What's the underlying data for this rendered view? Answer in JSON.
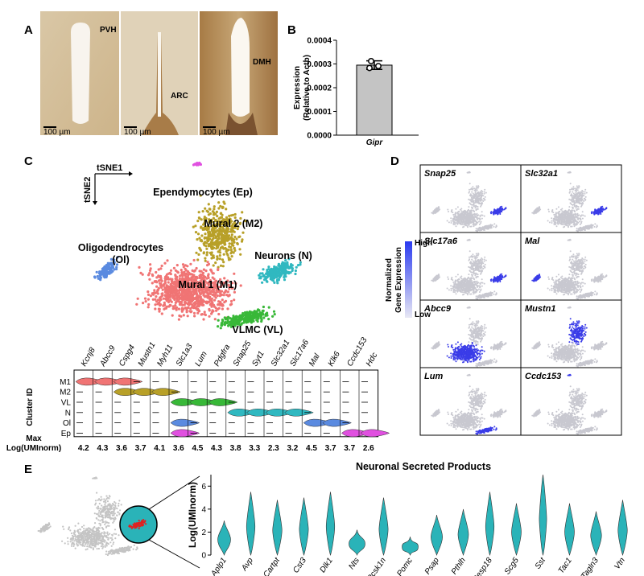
{
  "panel_labels": [
    "A",
    "B",
    "C",
    "D",
    "E"
  ],
  "panel_a": {
    "regions": [
      "PVH",
      "ARC",
      "DMH"
    ],
    "scale_bars": [
      "100 µm",
      "100 µm",
      "100 µm"
    ]
  },
  "chart_data": [
    {
      "type": "bar",
      "ylabel": "Expression",
      "ylabel2": "(Relative to Actb)",
      "categories": [
        "Gipr"
      ],
      "values": [
        0.000295
      ],
      "errors": [
        1.8e-05
      ],
      "points": [
        0.000312,
        0.000283,
        0.000291
      ],
      "color": "#c4c4c4",
      "ylim": [
        0,
        0.0004
      ],
      "yticks": [
        {
          "value": 0,
          "label": "0.0000"
        },
        {
          "value": 0.0001,
          "label": "0.0001"
        },
        {
          "value": 0.0002,
          "label": "0.0002"
        },
        {
          "value": 0.0003,
          "label": "0.0003"
        },
        {
          "value": 0.0004,
          "label": "0.0004"
        }
      ]
    },
    {
      "type": "violin",
      "title": "Neuronal Secreted Products",
      "ylabel": "Log(UMInorm)",
      "categories": [
        "Aplp1",
        "Avp",
        "Cartpt",
        "Cst3",
        "Dlk1",
        "Nts",
        "Pcsk1n",
        "Pomc",
        "Psap",
        "Pthlh",
        "Resp18",
        "Scg5",
        "Sst",
        "Tac1",
        "Tagln3",
        "Vtn"
      ],
      "values": [
        3.0,
        5.5,
        4.8,
        5.0,
        5.5,
        2.2,
        5.0,
        1.6,
        3.5,
        4.0,
        5.5,
        4.5,
        7.0,
        4.5,
        3.8,
        4.8
      ],
      "color": "#2ab3b8",
      "ylim": [
        0,
        7
      ],
      "yticks": [
        0,
        2,
        4,
        6
      ]
    }
  ],
  "panel_c": {
    "tsne_axes": [
      "tSNE1",
      "tSNE2"
    ],
    "clusters": [
      {
        "label": "Ependymocytes (Ep)",
        "code": "Ep",
        "color": "#e050e0"
      },
      {
        "label": "Mural 2 (M2)",
        "code": "M2",
        "color": "#b8a028"
      },
      {
        "label": "Oligodendrocytes",
        "label2": "(Ol)",
        "code": "Ol",
        "color": "#5a8ae0"
      },
      {
        "label": "Neurons (N)",
        "code": "N",
        "color": "#30b8c0"
      },
      {
        "label": "Mural 1 (M1)",
        "code": "M1",
        "color": "#f07474"
      },
      {
        "label": "VLMC (VL)",
        "code": "VL",
        "color": "#38b838"
      }
    ],
    "violin": {
      "ylabel": "Cluster ID",
      "cluster_ids": [
        "M1",
        "M2",
        "VL",
        "N",
        "Ol",
        "Ep"
      ],
      "genes": [
        "Kcnj8",
        "Abcc9",
        "Cspg4",
        "Mustn1",
        "Myh11",
        "Slc1a3",
        "Lum",
        "Pdgfra",
        "Snap25",
        "Syt1",
        "Slc32a1",
        "Slc17a6",
        "Mal",
        "Klk6",
        "Ccdc153",
        "Hdc"
      ],
      "expressed": [
        [
          "M1"
        ],
        [
          "M1"
        ],
        [
          "M1",
          "M2"
        ],
        [
          "M2"
        ],
        [
          "M2"
        ],
        [
          "VL",
          "Ol",
          "Ep"
        ],
        [
          "VL"
        ],
        [
          "VL"
        ],
        [
          "N"
        ],
        [
          "N"
        ],
        [
          "N"
        ],
        [
          "N"
        ],
        [
          "Ol"
        ],
        [
          "Ol"
        ],
        [
          "Ep"
        ],
        [
          "Ep"
        ]
      ],
      "max_label": "Max",
      "max_label2": "Log(UMInorm)",
      "max_values": [
        4.2,
        4.3,
        3.6,
        3.7,
        4.1,
        3.6,
        4.5,
        4.3,
        3.8,
        3.3,
        2.3,
        3.2,
        4.5,
        3.7,
        3.7,
        2.6
      ]
    }
  },
  "panel_d": {
    "genes": [
      "Snap25",
      "Slc32a1",
      "Slc17a6",
      "Mal",
      "Abcc9",
      "Mustn1",
      "Lum",
      "Ccdc153"
    ],
    "highlight": [
      "N",
      "N",
      "N",
      "Ol",
      "M1",
      "M2",
      "VL",
      "Ep"
    ],
    "legend_title": "Normalized",
    "legend_title2": "Gene Expression",
    "high": "High",
    "low": "Low"
  }
}
